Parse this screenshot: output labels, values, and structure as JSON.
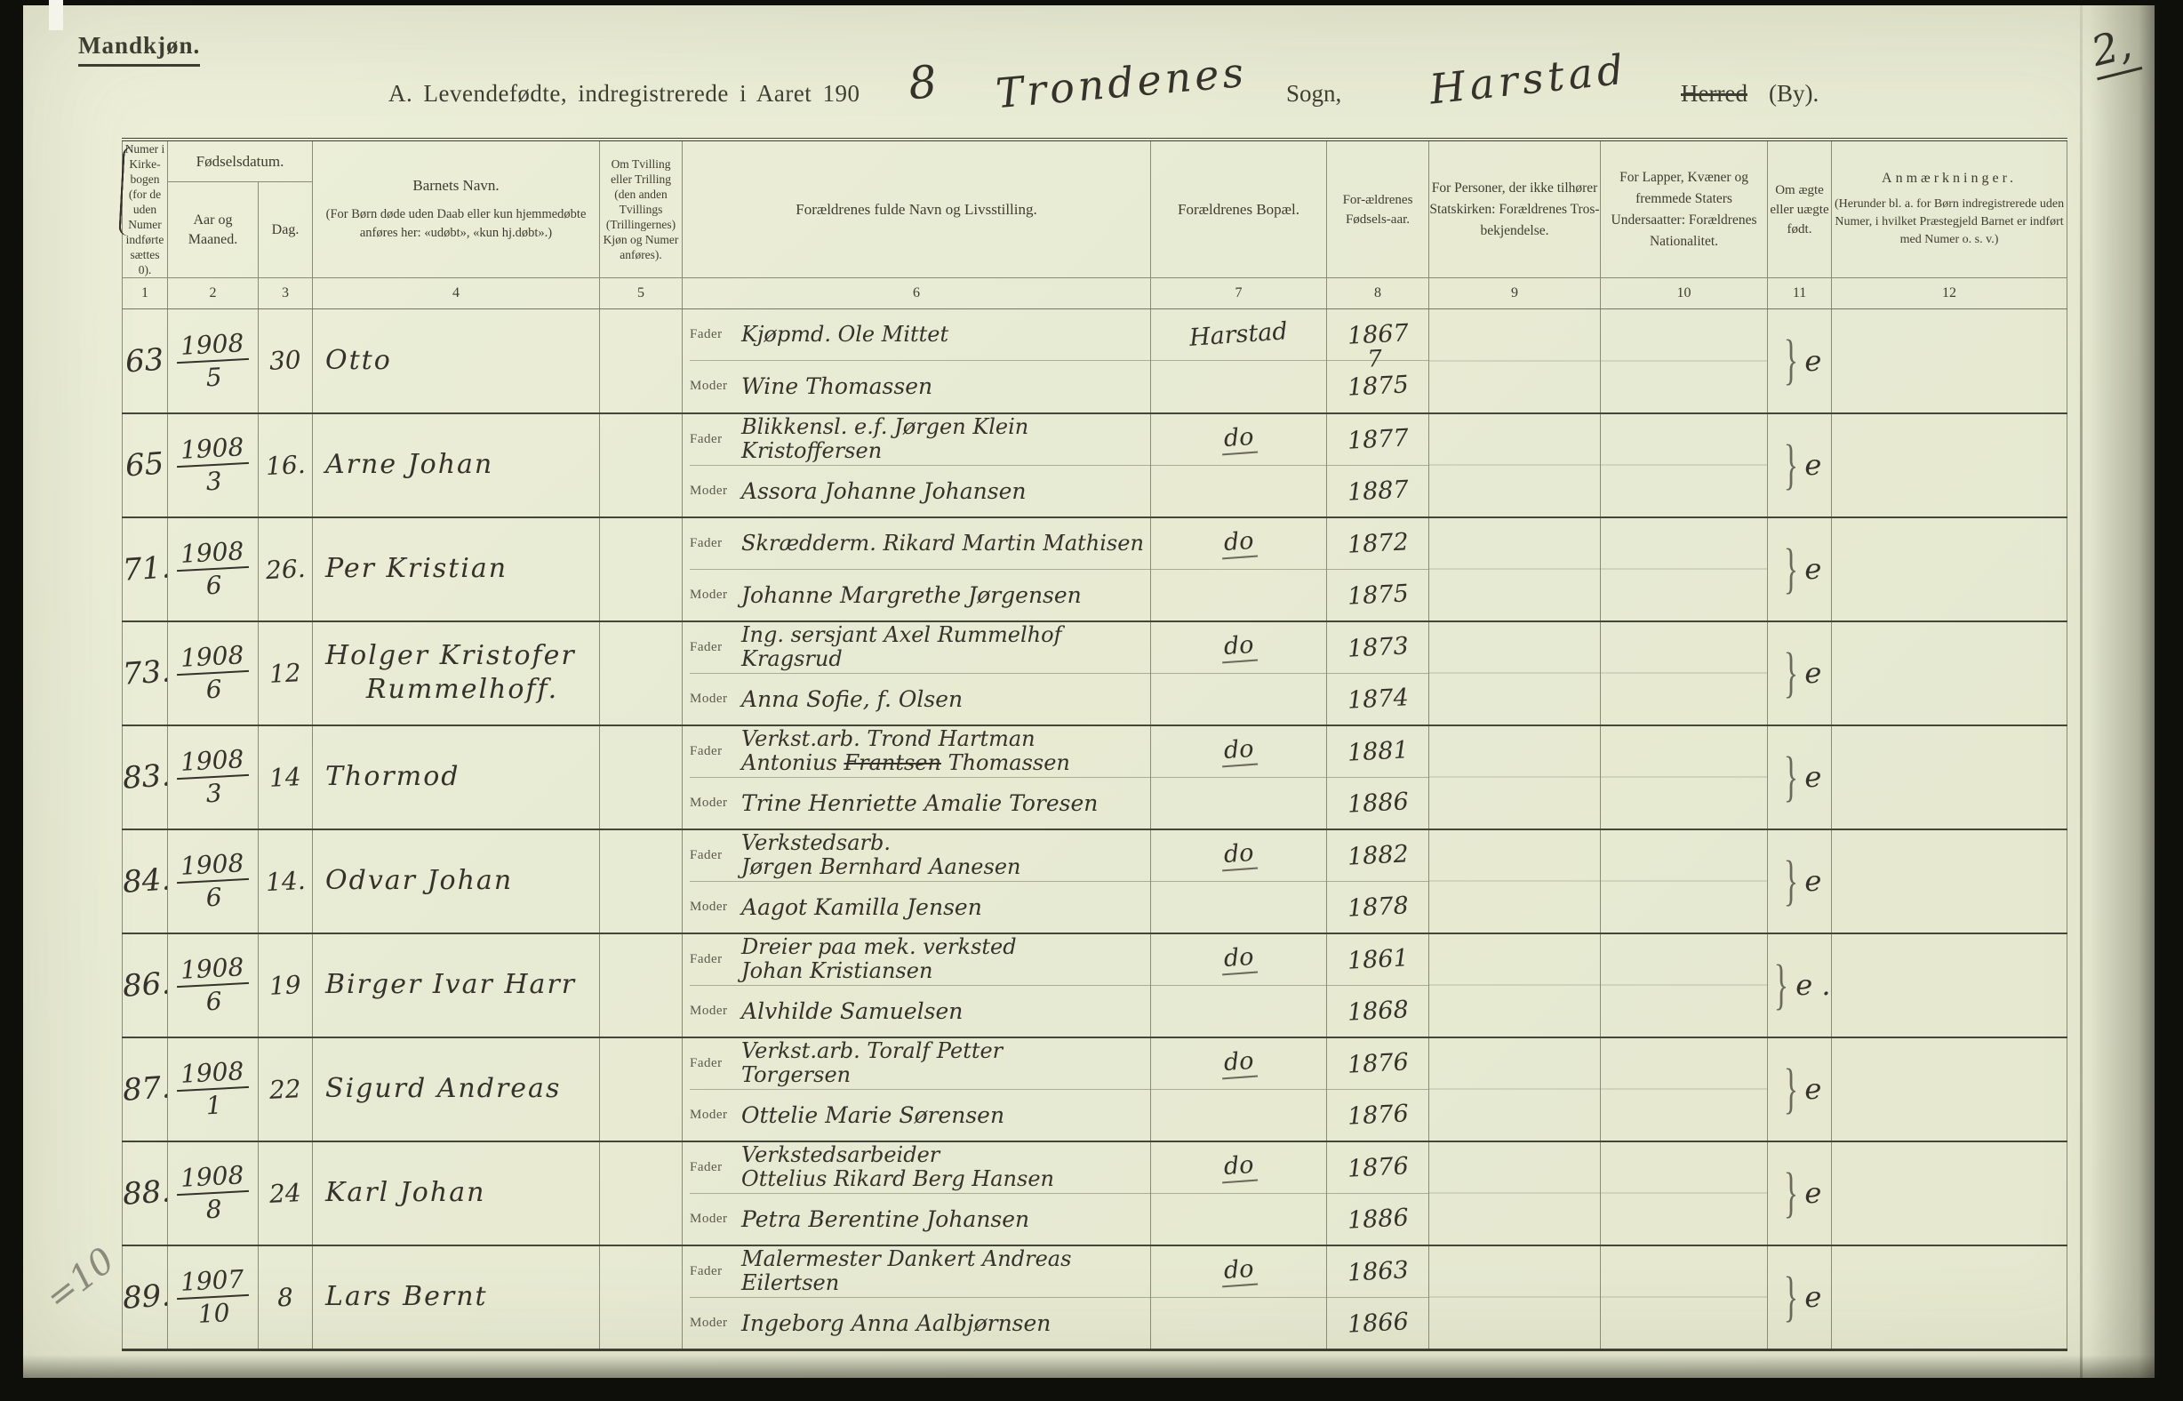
{
  "page": {
    "side_label": "Mandkjøn.",
    "page_number": "2,",
    "pencil_note": "=10",
    "colors": {
      "paper": "#e8ebd3",
      "ink_printed": "#3e3d31",
      "ink_handwritten": "#34322a",
      "pencil": "#8b8b7d"
    },
    "title": {
      "printed_prefix": "A.  Levendefødte, indregistrerede i Aaret 190",
      "year_digit": "8",
      "parish_handwritten": "Trondenes",
      "sogn_label": "Sogn,",
      "place_handwritten": "Harstad",
      "herred_struck": "Herred",
      "by_label": "(By)."
    }
  },
  "table": {
    "headers": {
      "c1": "Numer i Kirke-bogen (for de uden Numer indførte sættes 0).",
      "fodselsdatum": "Fødselsdatum.",
      "c2": "Aar og Maaned.",
      "c3": "Dag.",
      "c4_title": "Barnets Navn.",
      "c4_note": "(For Børn døde uden Daab eller kun hjemmedøbte anføres her: «udøbt», «kun hj.døbt».)",
      "c5": "Om Tvilling eller Trilling (den anden Tvillings (Trillingernes) Kjøn og Numer anføres).",
      "c6": "Forældrenes fulde Navn og Livsstilling.",
      "c7": "Forældrenes Bopæl.",
      "c8": "For-ældrenes Fødsels-aar.",
      "c9": "For Personer, der ikke tilhører Statskirken: Forældrenes Tros-bekjendelse.",
      "c10": "For Lapper, Kvæner og fremmede Staters Undersaatter: Forældrenes Nationalitet.",
      "c11": "Om ægte eller uægte født.",
      "c12_title": "Anmærkninger.",
      "c12_note": "(Herunder bl. a. for Børn indregistrerede uden Numer, i hvilket Præstegjeld Barnet er indført med Numer o. s. v.)"
    },
    "column_numbers": [
      "1",
      "2",
      "3",
      "4",
      "5",
      "6",
      "7",
      "8",
      "9",
      "10",
      "11",
      "12"
    ],
    "labels": {
      "father": "Fader",
      "mother": "Moder"
    },
    "rows": [
      {
        "no": "63",
        "year": "1908",
        "month": "5",
        "day": "30",
        "name": [
          "Otto"
        ],
        "father": [
          "Kjøpmd. Ole Mittet"
        ],
        "mother": "Wine Thomassen",
        "residence": "Harstad",
        "father_born": "1867",
        "mother_born": "1875",
        "mother_born_correction": "7",
        "legitimacy": "e"
      },
      {
        "no": "65",
        "year": "1908",
        "month": "3",
        "day": "16.",
        "name": [
          "Arne Johan"
        ],
        "father": [
          "Blikkensl. e.f. Jørgen Klein Kristoffersen"
        ],
        "mother": "Assora Johanne Johansen",
        "residence": "do",
        "father_born": "1877",
        "mother_born": "1887",
        "legitimacy": "e"
      },
      {
        "no": "71.",
        "year": "1908",
        "month": "6",
        "day": "26.",
        "name": [
          "Per Kristian"
        ],
        "father": [
          "Skrædderm. Rikard Martin Mathisen"
        ],
        "mother": "Johanne Margrethe Jørgensen",
        "residence": "do",
        "father_born": "1872",
        "mother_born": "1875",
        "legitimacy": "e"
      },
      {
        "no": "73.",
        "year": "1908",
        "month": "6",
        "day": "12",
        "name": [
          "Holger Kristofer",
          "Rummelhoff."
        ],
        "father": [
          "Ing. sersjant Axel Rummelhof Kragsrud"
        ],
        "mother": "Anna Sofie, f. Olsen",
        "residence": "do",
        "father_born": "1873",
        "mother_born": "1874",
        "legitimacy": "e"
      },
      {
        "no": "83.",
        "year": "1908",
        "month": "3",
        "day": "14",
        "name": [
          "Thormod"
        ],
        "father": [
          "Verkst.arb. Trond Hartman",
          "Antonius Frantsen Thomassen"
        ],
        "father_strike": "Frantsen",
        "mother": "Trine Henriette Amalie Toresen",
        "residence": "do",
        "father_born": "1881",
        "mother_born": "1886",
        "legitimacy": "e"
      },
      {
        "no": "84.",
        "year": "1908",
        "month": "6",
        "day": "14.",
        "name": [
          "Odvar Johan"
        ],
        "father": [
          "Verkstedsarb.",
          "Jørgen Bernhard Aanesen"
        ],
        "mother": "Aagot Kamilla Jensen",
        "residence": "do",
        "father_born": "1882",
        "mother_born": "1878",
        "legitimacy": "e"
      },
      {
        "no": "86.",
        "year": "1908",
        "month": "6",
        "day": "19",
        "name": [
          "Birger Ivar Harr"
        ],
        "father": [
          "Dreier paa mek. verksted",
          "Johan Kristiansen"
        ],
        "mother": "Alvhilde Samuelsen",
        "residence": "do",
        "father_born": "1861",
        "mother_born": "1868",
        "legitimacy": "e ."
      },
      {
        "no": "87.",
        "year": "1908",
        "month": "1",
        "day": "22",
        "name": [
          "Sigurd Andreas"
        ],
        "father": [
          "Verkst.arb. Toralf Petter",
          "Torgersen"
        ],
        "mother": "Ottelie Marie Sørensen",
        "residence": "do",
        "father_born": "1876",
        "mother_born": "1876",
        "legitimacy": "e"
      },
      {
        "no": "88.",
        "year": "1908",
        "month": "8",
        "day": "24",
        "name": [
          "Karl Johan"
        ],
        "father": [
          "Verkstedsarbeider",
          "Ottelius Rikard Berg Hansen"
        ],
        "mother": "Petra Berentine Johansen",
        "residence": "do",
        "father_born": "1876",
        "mother_born": "1886",
        "legitimacy": "e"
      },
      {
        "no": "89.",
        "year": "1907",
        "month": "10",
        "day": "8",
        "name": [
          "Lars Bernt"
        ],
        "father": [
          "Malermester Dankert Andreas",
          "Eilertsen"
        ],
        "mother": "Ingeborg Anna Aalbjørnsen",
        "residence": "do",
        "father_born": "1863",
        "mother_born": "1866",
        "legitimacy": "e"
      }
    ]
  }
}
